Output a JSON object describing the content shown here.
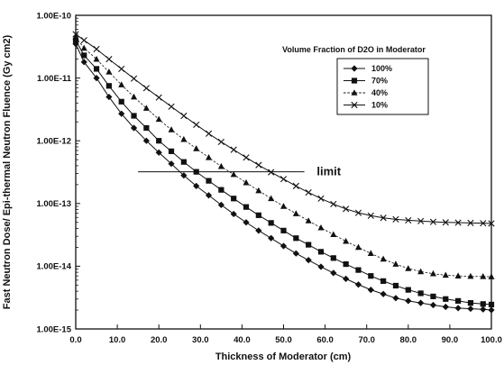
{
  "chart_data": {
    "type": "line",
    "xlabel": "Thickness of Moderator (cm)",
    "ylabel": "Fast Neutron Dose/ Epi-thermal Neutron Fluence (Gy cm2)",
    "xlim": [
      0,
      100
    ],
    "ylim": [
      1e-15,
      1e-10
    ],
    "y_scale": "log",
    "grid": false,
    "x_ticks": [
      0,
      10,
      20,
      30,
      40,
      50,
      60,
      70,
      80,
      90,
      100
    ],
    "x_tick_labels": [
      "0.0",
      "10.0",
      "20.0",
      "30.0",
      "40.0",
      "50.0",
      "60.0",
      "70.0",
      "80.0",
      "90.0",
      "100.0"
    ],
    "y_ticks": [
      1e-10,
      1e-11,
      1e-12,
      1e-13,
      1e-14,
      1e-15
    ],
    "y_tick_labels": [
      "1.00E-10",
      "1.00E-11",
      "1.00E-12",
      "1.00E-13",
      "1.00E-14",
      "1.00E-15"
    ],
    "legend": {
      "title": "Volume Fraction of D2O in Moderator",
      "placement": "top-right"
    },
    "x": [
      0,
      2,
      5,
      8,
      11,
      14,
      17,
      20,
      23,
      26,
      29,
      32,
      35,
      38,
      41,
      44,
      47,
      50,
      53,
      56,
      59,
      62,
      65,
      68,
      71,
      74,
      77,
      80,
      83,
      86,
      89,
      92,
      95,
      98,
      100
    ],
    "series": [
      {
        "name": "100%",
        "marker": "diamond",
        "values": [
          3.5e-11,
          1.8e-11,
          1e-11,
          5e-12,
          2.7e-12,
          1.6e-12,
          1e-12,
          6.5e-13,
          4.3e-13,
          2.8e-13,
          1.9e-13,
          1.35e-13,
          9.5e-14,
          6.8e-14,
          5e-14,
          3.7e-14,
          2.8e-14,
          2.1e-14,
          1.6e-14,
          1.25e-14,
          9.8e-15,
          7.8e-15,
          6.3e-15,
          5.1e-15,
          4.2e-15,
          3.6e-15,
          3.1e-15,
          2.8e-15,
          2.6e-15,
          2.4e-15,
          2.25e-15,
          2.15e-15,
          2.1e-15,
          2.05e-15,
          2e-15
        ]
      },
      {
        "name": "70%",
        "marker": "square",
        "values": [
          4e-11,
          2.3e-11,
          1.4e-11,
          7.5e-12,
          4.2e-12,
          2.5e-12,
          1.6e-12,
          1e-12,
          6.8e-13,
          4.6e-13,
          3.2e-13,
          2.3e-13,
          1.65e-13,
          1.2e-13,
          8.8e-14,
          6.5e-14,
          4.9e-14,
          3.7e-14,
          2.8e-14,
          2.2e-14,
          1.7e-14,
          1.35e-14,
          1.08e-14,
          8.7e-15,
          7e-15,
          5.8e-15,
          4.9e-15,
          4.2e-15,
          3.7e-15,
          3.3e-15,
          3e-15,
          2.8e-15,
          2.6e-15,
          2.5e-15,
          2.45e-15
        ]
      },
      {
        "name": "40%",
        "marker": "triangle",
        "values": [
          4.5e-11,
          3e-11,
          2e-11,
          1.25e-11,
          7.8e-12,
          5e-12,
          3.3e-12,
          2.2e-12,
          1.5e-12,
          1.05e-12,
          7.5e-13,
          5.4e-13,
          3.9e-13,
          2.9e-13,
          2.15e-13,
          1.6e-13,
          1.2e-13,
          9e-14,
          6.9e-14,
          5.3e-14,
          4.1e-14,
          3.2e-14,
          2.5e-14,
          2e-14,
          1.6e-14,
          1.3e-14,
          1.08e-14,
          9.2e-15,
          8.2e-15,
          7.6e-15,
          7.2e-15,
          7e-15,
          6.9e-15,
          6.85e-15,
          6.8e-15
        ]
      },
      {
        "name": "10%",
        "marker": "x",
        "values": [
          5e-11,
          4e-11,
          2.9e-11,
          2e-11,
          1.4e-11,
          9.8e-12,
          6.9e-12,
          4.9e-12,
          3.5e-12,
          2.5e-12,
          1.8e-12,
          1.3e-12,
          9.6e-13,
          7.2e-13,
          5.4e-13,
          4.1e-13,
          3.15e-13,
          2.45e-13,
          1.9e-13,
          1.5e-13,
          1.2e-13,
          9.8e-14,
          8.2e-14,
          7.1e-14,
          6.4e-14,
          5.9e-14,
          5.6e-14,
          5.4e-14,
          5.25e-14,
          5.1e-14,
          5e-14,
          4.95e-14,
          4.9e-14,
          4.85e-14,
          4.8e-14
        ]
      }
    ],
    "annotations": [
      {
        "text": "limit",
        "y": 3.2e-13,
        "x_range": [
          15,
          55
        ],
        "label_x": 58
      }
    ]
  }
}
